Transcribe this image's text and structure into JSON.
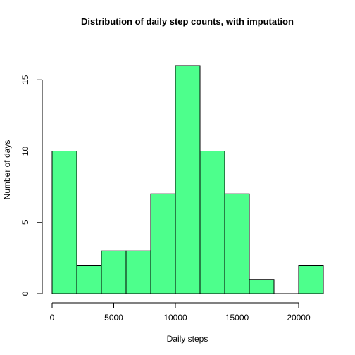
{
  "chart_data": {
    "type": "bar",
    "subtype": "histogram",
    "title": "Distribution of daily step counts, with imputation",
    "xlabel": "Daily steps",
    "ylabel": "Number of days",
    "bins": [
      {
        "start": 0,
        "end": 2000,
        "count": 10
      },
      {
        "start": 2000,
        "end": 4000,
        "count": 2
      },
      {
        "start": 4000,
        "end": 6000,
        "count": 3
      },
      {
        "start": 6000,
        "end": 8000,
        "count": 3
      },
      {
        "start": 8000,
        "end": 10000,
        "count": 7
      },
      {
        "start": 10000,
        "end": 12000,
        "count": 16
      },
      {
        "start": 12000,
        "end": 14000,
        "count": 10
      },
      {
        "start": 14000,
        "end": 16000,
        "count": 7
      },
      {
        "start": 16000,
        "end": 18000,
        "count": 1
      },
      {
        "start": 18000,
        "end": 20000,
        "count": 0
      },
      {
        "start": 20000,
        "end": 22000,
        "count": 2
      }
    ],
    "xlim": [
      0,
      22000
    ],
    "ylim": [
      0,
      16
    ],
    "x_ticks": [
      0,
      5000,
      10000,
      15000,
      20000
    ],
    "y_ticks": [
      0,
      5,
      10,
      15
    ],
    "bar_color": "#4DFF8C",
    "bar_border_color": "#000000",
    "grid": false,
    "legend": "none"
  }
}
